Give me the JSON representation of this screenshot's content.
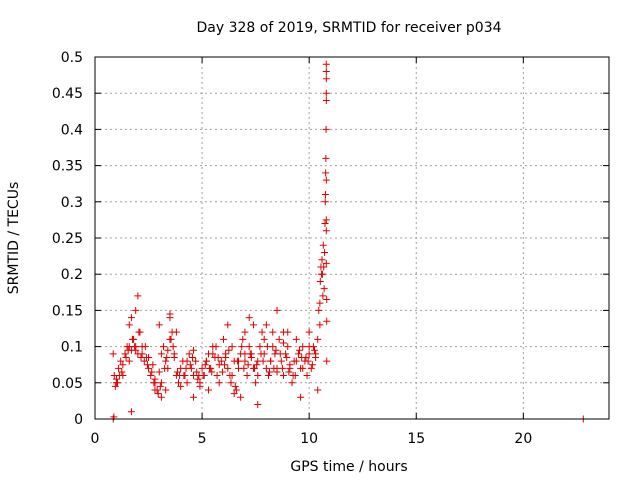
{
  "chart_data": {
    "type": "scatter",
    "title": "Day 328 of 2019, SRMTID for receiver p034",
    "xlabel": "GPS time / hours",
    "ylabel": "SRMTID / TECUs",
    "xlim": [
      0,
      24
    ],
    "ylim": [
      0,
      0.5
    ],
    "grid": true,
    "marker": "+",
    "marker_color": "#e00000",
    "x_ticks": [
      0,
      5,
      10,
      15,
      20
    ],
    "y_ticks": [
      0,
      0.05,
      0.1,
      0.15,
      0.2,
      0.25,
      0.3,
      0.35,
      0.4,
      0.45,
      0.5
    ],
    "x_tick_labels": [
      "0",
      "5",
      "10",
      "15",
      "20"
    ],
    "y_tick_labels": [
      "0",
      "0.05",
      "0.1",
      "0.15",
      "0.2",
      "0.25",
      "0.3",
      "0.35",
      "0.4",
      "0.45",
      "0.5"
    ],
    "series": [
      {
        "name": "p034",
        "x": [
          0.85,
          0.9,
          0.95,
          1.0,
          1.1,
          1.2,
          1.3,
          1.4,
          1.5,
          1.6,
          1.7,
          1.8,
          1.9,
          2.0,
          2.1,
          2.2,
          2.3,
          2.4,
          2.5,
          2.6,
          2.7,
          2.8,
          2.9,
          3.0,
          3.1,
          3.2,
          3.3,
          3.4,
          3.5,
          3.6,
          3.7,
          3.8,
          3.9,
          4.0,
          4.1,
          4.2,
          4.3,
          4.4,
          4.5,
          4.6,
          4.7,
          4.8,
          4.9,
          5.0,
          5.1,
          5.2,
          5.3,
          5.4,
          5.5,
          5.6,
          5.7,
          5.8,
          5.9,
          6.0,
          6.1,
          6.2,
          6.3,
          6.4,
          6.5,
          6.6,
          6.7,
          6.8,
          6.9,
          7.0,
          7.1,
          7.2,
          7.3,
          7.4,
          7.5,
          7.6,
          7.7,
          7.8,
          7.9,
          8.0,
          8.1,
          8.2,
          8.3,
          8.4,
          8.5,
          8.6,
          8.7,
          8.8,
          8.9,
          9.0,
          9.1,
          9.2,
          9.3,
          9.4,
          9.5,
          9.6,
          9.7,
          9.8,
          9.9,
          10.0,
          10.1,
          10.2,
          10.3,
          10.4,
          10.5,
          1.0,
          1.15,
          1.3,
          1.45,
          1.6,
          1.75,
          1.9,
          2.05,
          2.2,
          2.35,
          2.5,
          2.65,
          2.8,
          2.95,
          3.1,
          3.25,
          3.4,
          3.55,
          3.7,
          3.85,
          4.0,
          4.15,
          4.3,
          4.45,
          4.6,
          4.75,
          4.9,
          5.05,
          5.2,
          5.35,
          5.5,
          5.65,
          5.8,
          5.95,
          6.1,
          6.25,
          6.4,
          6.55,
          6.7,
          6.85,
          7.0,
          7.15,
          7.3,
          7.45,
          7.6,
          7.75,
          7.9,
          8.05,
          8.2,
          8.35,
          8.5,
          8.65,
          8.8,
          8.95,
          9.1,
          9.25,
          9.4,
          9.55,
          9.7,
          9.85,
          10.0,
          10.15,
          10.3,
          1.05,
          1.25,
          1.55,
          1.85,
          2.15,
          2.45,
          2.75,
          3.05,
          3.35,
          3.65,
          3.95,
          4.25,
          4.55,
          4.85,
          5.15,
          5.45,
          5.75,
          6.05,
          6.35,
          6.65,
          6.95,
          7.25,
          7.55,
          7.85,
          8.15,
          8.45,
          8.75,
          9.05,
          9.35,
          9.65,
          9.95,
          10.25,
          1.6,
          1.7,
          1.9,
          2.0,
          2.8,
          3.1,
          3.3,
          3.5,
          3.8,
          4.6,
          5.3,
          6.2,
          6.5,
          7.0,
          7.2,
          7.6,
          8.0,
          8.3,
          8.5,
          9.0,
          9.6,
          10.0,
          10.4,
          1.7,
          3.0,
          3.5,
          6.8,
          7.4,
          8.8,
          10.45,
          10.5,
          10.52,
          10.55,
          10.58,
          10.6,
          10.62,
          10.64,
          10.66,
          10.68,
          10.7,
          10.72,
          10.74,
          10.75,
          10.76,
          10.77,
          10.78,
          10.79,
          10.8,
          10.8,
          10.8,
          10.8,
          10.8,
          10.8,
          10.8,
          10.8,
          10.8,
          10.82,
          10.82,
          10.82,
          0.85,
          0.88,
          22.8
        ],
        "y": [
          0.09,
          0.06,
          0.045,
          0.05,
          0.07,
          0.08,
          0.06,
          0.09,
          0.1,
          0.08,
          0.095,
          0.11,
          0.1,
          0.09,
          0.12,
          0.1,
          0.08,
          0.085,
          0.07,
          0.06,
          0.075,
          0.05,
          0.04,
          0.065,
          0.09,
          0.1,
          0.08,
          0.07,
          0.11,
          0.12,
          0.09,
          0.06,
          0.05,
          0.07,
          0.08,
          0.06,
          0.05,
          0.09,
          0.07,
          0.06,
          0.08,
          0.055,
          0.045,
          0.07,
          0.06,
          0.08,
          0.09,
          0.07,
          0.1,
          0.085,
          0.06,
          0.05,
          0.08,
          0.11,
          0.09,
          0.07,
          0.06,
          0.1,
          0.08,
          0.04,
          0.07,
          0.09,
          0.11,
          0.08,
          0.06,
          0.1,
          0.09,
          0.07,
          0.05,
          0.08,
          0.1,
          0.12,
          0.09,
          0.07,
          0.06,
          0.08,
          0.1,
          0.09,
          0.07,
          0.11,
          0.08,
          0.06,
          0.09,
          0.1,
          0.07,
          0.05,
          0.08,
          0.11,
          0.09,
          0.07,
          0.1,
          0.08,
          0.06,
          0.09,
          0.07,
          0.1,
          0.085,
          0.11,
          0.13,
          0.055,
          0.06,
          0.075,
          0.085,
          0.1,
          0.11,
          0.095,
          0.12,
          0.09,
          0.1,
          0.085,
          0.065,
          0.055,
          0.035,
          0.05,
          0.07,
          0.095,
          0.11,
          0.085,
          0.065,
          0.045,
          0.06,
          0.08,
          0.075,
          0.095,
          0.065,
          0.05,
          0.06,
          0.08,
          0.07,
          0.09,
          0.1,
          0.075,
          0.065,
          0.085,
          0.095,
          0.06,
          0.045,
          0.08,
          0.1,
          0.09,
          0.075,
          0.085,
          0.07,
          0.06,
          0.09,
          0.11,
          0.1,
          0.08,
          0.07,
          0.065,
          0.09,
          0.105,
          0.085,
          0.075,
          0.06,
          0.08,
          0.095,
          0.07,
          0.085,
          0.1,
          0.075,
          0.09,
          0.05,
          0.065,
          0.095,
          0.1,
          0.085,
          0.075,
          0.05,
          0.045,
          0.085,
          0.1,
          0.06,
          0.07,
          0.085,
          0.06,
          0.075,
          0.065,
          0.085,
          0.075,
          0.05,
          0.08,
          0.07,
          0.09,
          0.075,
          0.08,
          0.065,
          0.095,
          0.07,
          0.065,
          0.06,
          0.085,
          0.08,
          0.095,
          0.13,
          0.14,
          0.15,
          0.17,
          0.04,
          0.03,
          0.04,
          0.145,
          0.12,
          0.03,
          0.04,
          0.13,
          0.035,
          0.12,
          0.14,
          0.02,
          0.13,
          0.12,
          0.15,
          0.12,
          0.03,
          0.12,
          0.04,
          0.01,
          0.13,
          0.14,
          0.03,
          0.13,
          0.12,
          0.15,
          0.16,
          0.19,
          0.21,
          0.2,
          0.22,
          0.2,
          0.17,
          0.24,
          0.21,
          0.18,
          0.23,
          0.27,
          0.3,
          0.31,
          0.34,
          0.36,
          0.4,
          0.44,
          0.45,
          0.47,
          0.48,
          0.49,
          0.33,
          0.275,
          0.26,
          0.215,
          0.165,
          0.135,
          0.08,
          0.0,
          0.003,
          0.0
        ]
      }
    ]
  }
}
